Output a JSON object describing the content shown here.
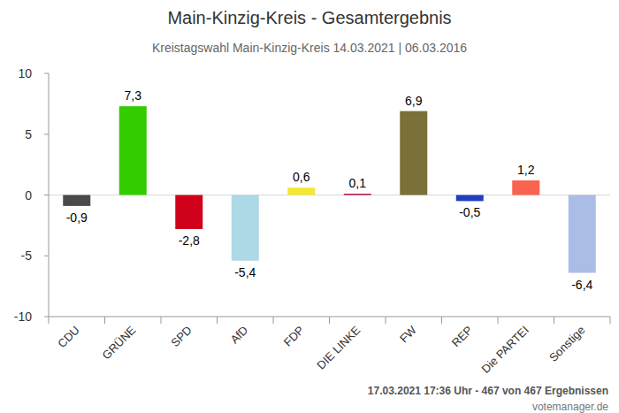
{
  "chart_data": {
    "type": "bar",
    "title": "Main-Kinzig-Kreis - Gesamtergebnis",
    "subtitle": "Kreistagswahl Main-Kinzig-Kreis 14.03.2021 | 06.03.2016",
    "categories": [
      "CDU",
      "GRÜNE",
      "SPD",
      "AfD",
      "FDP",
      "DIE LINKE",
      "FW",
      "REP",
      "Die PARTEI",
      "Sonstige"
    ],
    "values": [
      -0.9,
      7.3,
      -2.8,
      -5.4,
      0.6,
      0.1,
      6.9,
      -0.5,
      1.2,
      -6.4
    ],
    "value_labels": [
      "-0,9",
      "7,3",
      "-2,8",
      "-5,4",
      "0,6",
      "0,1",
      "6,9",
      "-0,5",
      "1,2",
      "-6,4"
    ],
    "colors": [
      "#4a4a4a",
      "#33cc00",
      "#d0021b",
      "#add8e6",
      "#f2e835",
      "#b1003a",
      "#7a7038",
      "#1f3fbf",
      "#f9634f",
      "#aabde6"
    ],
    "ylim": [
      -10,
      10
    ],
    "yticks": [
      -10,
      -5,
      0,
      5,
      10
    ],
    "grid": false,
    "data_labels": true,
    "footer": "17.03.2021 17:36 Uhr - 467 von 467 Ergebnissen",
    "source": "votemanager.de"
  }
}
